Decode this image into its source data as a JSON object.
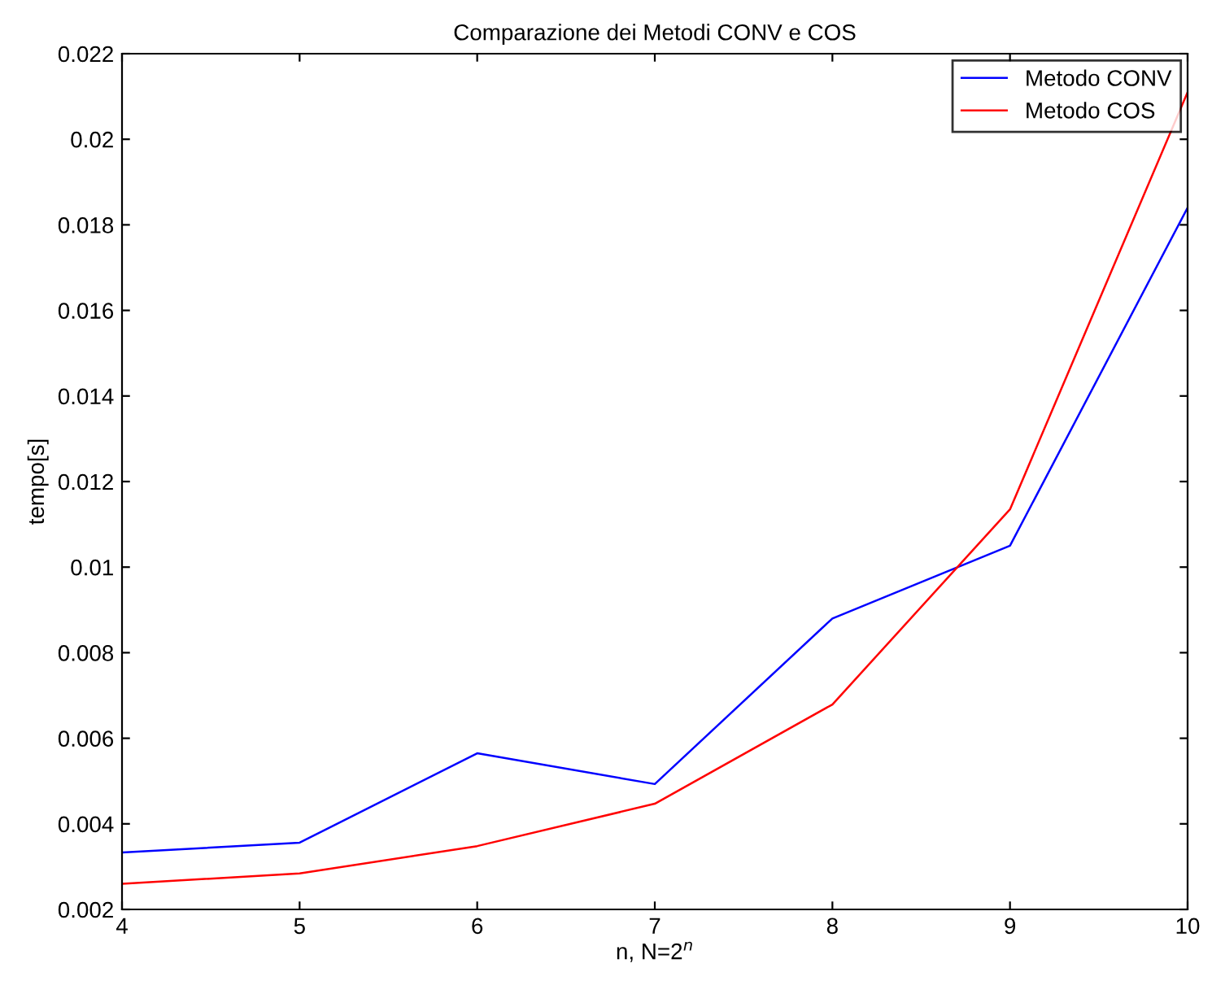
{
  "chart_data": {
    "type": "line",
    "title": "Comparazione dei Metodi CONV e COS",
    "xlabel": "n, N=2$^{n}$",
    "ylabel": "tempo[s]",
    "x": [
      4,
      5,
      6,
      7,
      8,
      9,
      10
    ],
    "series": [
      {
        "name": "Metodo CONV",
        "color": "#0000ff",
        "values": [
          0.00333,
          0.00356,
          0.00565,
          0.00493,
          0.0088,
          0.0105,
          0.0184
        ]
      },
      {
        "name": "Metodo COS",
        "color": "#ff0000",
        "values": [
          0.0026,
          0.00284,
          0.00348,
          0.00447,
          0.00679,
          0.01135,
          0.0211
        ]
      }
    ],
    "xlim": [
      4,
      10
    ],
    "xticks": [
      4,
      5,
      6,
      7,
      8,
      9,
      10
    ],
    "ylim": [
      0.002,
      0.022
    ],
    "yticks": [
      0.002,
      0.004,
      0.006,
      0.008,
      0.01,
      0.012,
      0.014,
      0.016,
      0.018,
      0.02,
      0.022
    ],
    "grid": false,
    "legend": "top right",
    "marker": "none",
    "line_style": "solid"
  }
}
